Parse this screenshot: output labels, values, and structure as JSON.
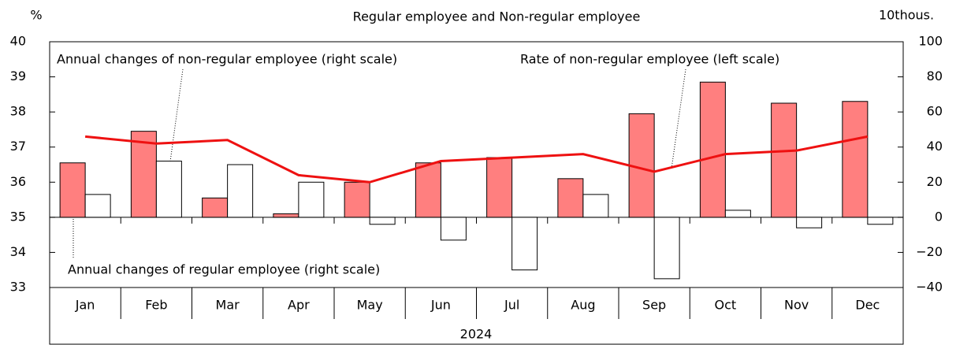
{
  "chart_data": {
    "type": "bar",
    "title": "Regular employee and Non-regular employee",
    "y_label": "%",
    "y2_label": "10thous.",
    "x_group_label": "2024",
    "categories": [
      "Jan",
      "Feb",
      "Mar",
      "Apr",
      "May",
      "Jun",
      "Jul",
      "Aug",
      "Sep",
      "Oct",
      "Nov",
      "Dec"
    ],
    "series": [
      {
        "name": "Annual changes of  regular employee (right scale)",
        "type": "bar",
        "axis": "y2",
        "color": "#ff7f7f",
        "values": [
          31,
          49,
          11,
          2,
          20,
          31,
          34,
          22,
          59,
          77,
          65,
          66
        ]
      },
      {
        "name": "Annual changes of non-regular employee (right scale)",
        "type": "bar",
        "axis": "y2",
        "color": "#ffffff",
        "values": [
          13,
          32,
          30,
          20,
          -4,
          -13,
          -30,
          13,
          -35,
          4,
          -6,
          -4
        ]
      },
      {
        "name": "Rate of non-regular employee (left scale)",
        "type": "line",
        "axis": "y",
        "color": "#ee1111",
        "values": [
          37.3,
          37.1,
          37.2,
          36.2,
          36.0,
          36.6,
          36.7,
          36.8,
          36.3,
          36.8,
          36.9,
          37.3
        ]
      }
    ],
    "ylim": [
      33,
      40
    ],
    "yticks": [
      33,
      34,
      35,
      36,
      37,
      38,
      39,
      40
    ],
    "y2lim": [
      -40,
      100
    ],
    "y2ticks": [
      {
        "value": -40,
        "label": "−40"
      },
      {
        "value": -20,
        "label": "−20"
      },
      0,
      20,
      40,
      60,
      80,
      100
    ]
  }
}
